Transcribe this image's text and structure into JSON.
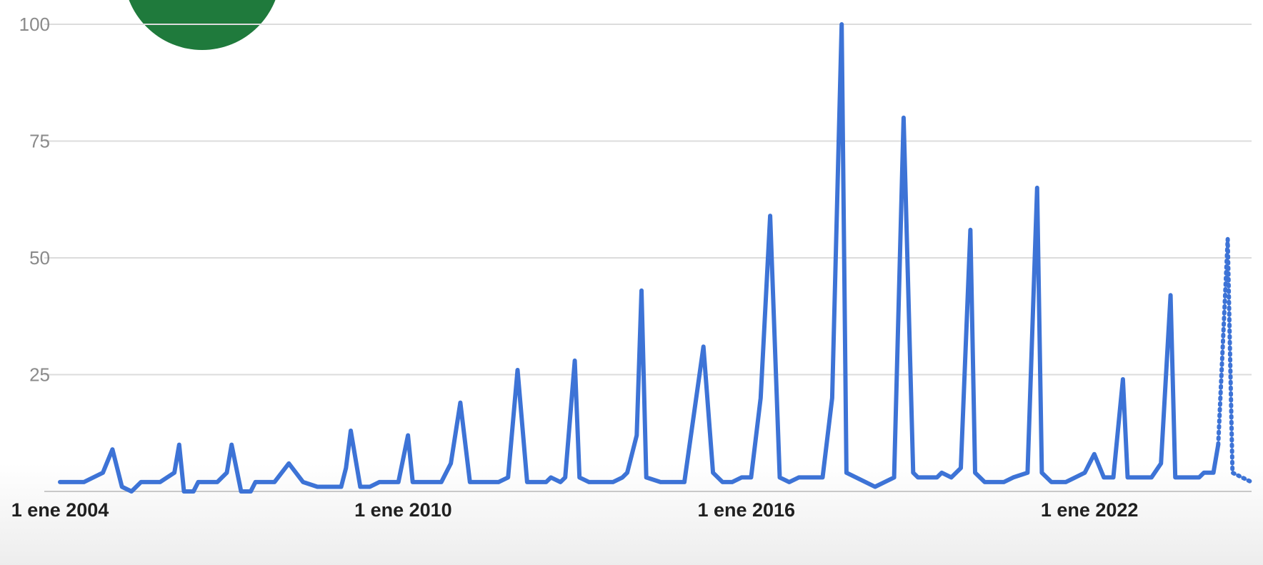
{
  "chart_data": {
    "type": "line",
    "title": "",
    "xlabel": "",
    "ylabel": "",
    "ylim": [
      0,
      100
    ],
    "y_ticks": [
      100,
      75,
      50,
      25
    ],
    "x_tick_labels": [
      "1 ene 2004",
      "1 ene 2010",
      "1 ene 2016",
      "1 ene 2022"
    ],
    "grid": true,
    "x_start": "2004-01",
    "x_end": "2024-11",
    "partial_last_points": 4,
    "series": [
      {
        "color": "#3d73d6",
        "points": [
          [
            "2004-01",
            2
          ],
          [
            "2004-06",
            2
          ],
          [
            "2004-10",
            4
          ],
          [
            "2004-12",
            9
          ],
          [
            "2005-02",
            1
          ],
          [
            "2005-04",
            0
          ],
          [
            "2005-06",
            2
          ],
          [
            "2005-10",
            2
          ],
          [
            "2006-01",
            4
          ],
          [
            "2006-02",
            10
          ],
          [
            "2006-03",
            0
          ],
          [
            "2006-05",
            0
          ],
          [
            "2006-06",
            2
          ],
          [
            "2006-10",
            2
          ],
          [
            "2006-12",
            4
          ],
          [
            "2007-01",
            10
          ],
          [
            "2007-03",
            0
          ],
          [
            "2007-05",
            0
          ],
          [
            "2007-06",
            2
          ],
          [
            "2007-10",
            2
          ],
          [
            "2008-01",
            6
          ],
          [
            "2008-04",
            2
          ],
          [
            "2008-07",
            1
          ],
          [
            "2008-12",
            1
          ],
          [
            "2009-01",
            5
          ],
          [
            "2009-02",
            13
          ],
          [
            "2009-04",
            1
          ],
          [
            "2009-06",
            1
          ],
          [
            "2009-08",
            2
          ],
          [
            "2009-12",
            2
          ],
          [
            "2010-02",
            12
          ],
          [
            "2010-03",
            2
          ],
          [
            "2010-09",
            2
          ],
          [
            "2010-11",
            6
          ],
          [
            "2011-01",
            19
          ],
          [
            "2011-03",
            2
          ],
          [
            "2011-09",
            2
          ],
          [
            "2011-11",
            3
          ],
          [
            "2012-01",
            26
          ],
          [
            "2012-03",
            2
          ],
          [
            "2012-07",
            2
          ],
          [
            "2012-08",
            3
          ],
          [
            "2012-10",
            2
          ],
          [
            "2012-11",
            3
          ],
          [
            "2013-01",
            28
          ],
          [
            "2013-02",
            3
          ],
          [
            "2013-04",
            2
          ],
          [
            "2013-09",
            2
          ],
          [
            "2013-11",
            3
          ],
          [
            "2013-12",
            4
          ],
          [
            "2014-02",
            12
          ],
          [
            "2014-03",
            43
          ],
          [
            "2014-04",
            3
          ],
          [
            "2014-07",
            2
          ],
          [
            "2014-12",
            2
          ],
          [
            "2015-04",
            31
          ],
          [
            "2015-06",
            4
          ],
          [
            "2015-08",
            2
          ],
          [
            "2015-10",
            2
          ],
          [
            "2015-12",
            3
          ],
          [
            "2016-02",
            3
          ],
          [
            "2016-04",
            20
          ],
          [
            "2016-06",
            59
          ],
          [
            "2016-08",
            3
          ],
          [
            "2016-10",
            2
          ],
          [
            "2016-12",
            3
          ],
          [
            "2017-02",
            3
          ],
          [
            "2017-05",
            3
          ],
          [
            "2017-07",
            20
          ],
          [
            "2017-09",
            100
          ],
          [
            "2017-10",
            4
          ],
          [
            "2018-02",
            2
          ],
          [
            "2018-04",
            1
          ],
          [
            "2018-06",
            2
          ],
          [
            "2018-08",
            3
          ],
          [
            "2018-10",
            80
          ],
          [
            "2018-12",
            4
          ],
          [
            "2019-01",
            3
          ],
          [
            "2019-03",
            3
          ],
          [
            "2019-05",
            3
          ],
          [
            "2019-06",
            4
          ],
          [
            "2019-08",
            3
          ],
          [
            "2019-10",
            5
          ],
          [
            "2019-12",
            56
          ],
          [
            "2020-01",
            4
          ],
          [
            "2020-03",
            2
          ],
          [
            "2020-05",
            2
          ],
          [
            "2020-07",
            2
          ],
          [
            "2020-09",
            3
          ],
          [
            "2020-12",
            4
          ],
          [
            "2021-02",
            65
          ],
          [
            "2021-03",
            4
          ],
          [
            "2021-05",
            2
          ],
          [
            "2021-08",
            2
          ],
          [
            "2021-10",
            3
          ],
          [
            "2021-12",
            4
          ],
          [
            "2022-02",
            8
          ],
          [
            "2022-04",
            3
          ],
          [
            "2022-06",
            3
          ],
          [
            "2022-08",
            24
          ],
          [
            "2022-09",
            3
          ],
          [
            "2022-12",
            3
          ],
          [
            "2023-02",
            3
          ],
          [
            "2023-04",
            6
          ],
          [
            "2023-06",
            42
          ],
          [
            "2023-07",
            3
          ],
          [
            "2023-12",
            3
          ],
          [
            "2024-01",
            4
          ],
          [
            "2024-03",
            4
          ],
          [
            "2024-04",
            10
          ],
          [
            "2024-06",
            54
          ],
          [
            "2024-07",
            4
          ],
          [
            "2024-09",
            3
          ],
          [
            "2024-11",
            2
          ]
        ]
      }
    ]
  }
}
